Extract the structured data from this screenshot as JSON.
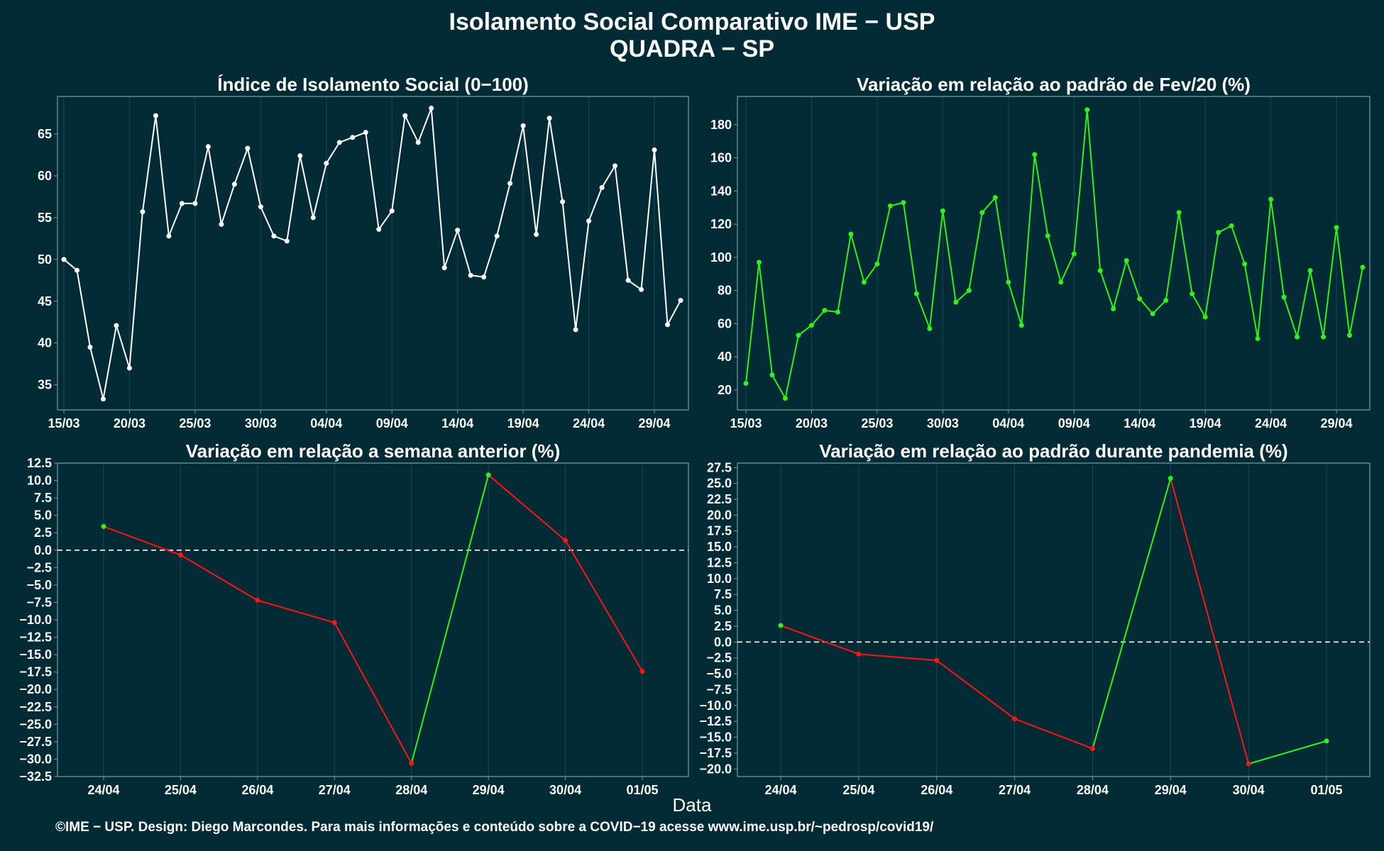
{
  "title": {
    "line1": "Isolamento Social Comparativo IME − USP",
    "line2": "QUADRA − SP"
  },
  "xlabel": "Data",
  "footer": "©IME − USP. Design: Diego Marcondes. Para mais informações e conteúdo sobre a COVID−19 acesse www.ime.usp.br/~pedrosp/covid19/",
  "colors": {
    "background": "#022b35",
    "white_series": "#ffffff",
    "positive": "#2ff21a",
    "negative": "#ff1414",
    "grid": "#1c4651",
    "border": "#7e9aa1"
  },
  "chart_data": [
    {
      "type": "line",
      "title": "Índice de Isolamento Social (0−100)",
      "x_start": "2020-03-15",
      "x": [
        "15/03",
        "16/03",
        "17/03",
        "18/03",
        "19/03",
        "20/03",
        "21/03",
        "22/03",
        "23/03",
        "24/03",
        "25/03",
        "26/03",
        "27/03",
        "28/03",
        "29/03",
        "30/03",
        "31/03",
        "01/04",
        "02/04",
        "03/04",
        "04/04",
        "05/04",
        "06/04",
        "07/04",
        "08/04",
        "09/04",
        "10/04",
        "11/04",
        "12/04",
        "13/04",
        "14/04",
        "15/04",
        "16/04",
        "17/04",
        "18/04",
        "19/04",
        "20/04",
        "21/04",
        "22/04",
        "23/04",
        "24/04",
        "25/04",
        "26/04",
        "27/04",
        "28/04",
        "29/04",
        "30/04",
        "01/05"
      ],
      "values": [
        50.0,
        48.7,
        39.5,
        33.3,
        42.1,
        37.0,
        55.7,
        67.2,
        52.8,
        56.7,
        56.7,
        63.5,
        54.2,
        59.0,
        63.3,
        56.3,
        52.8,
        52.2,
        62.4,
        55.0,
        61.5,
        64.0,
        64.6,
        65.2,
        53.6,
        55.8,
        67.2,
        64.0,
        68.1,
        49.0,
        53.5,
        48.1,
        47.9,
        52.8,
        59.1,
        66.0,
        53.0,
        66.9,
        56.9,
        41.6,
        54.6,
        58.6,
        61.2,
        47.5,
        46.4,
        63.1,
        42.2,
        45.1
      ],
      "xticks": [
        "15/03",
        "20/03",
        "25/03",
        "30/03",
        "04/04",
        "09/04",
        "14/04",
        "19/04",
        "24/04",
        "29/04"
      ],
      "yticks": [
        35,
        40,
        45,
        50,
        55,
        60,
        65
      ],
      "ylim": [
        32,
        69.5
      ],
      "color": "#ffffff"
    },
    {
      "type": "line",
      "title": "Variação em relação ao padrão de Fev/20 (%)",
      "x": [
        "15/03",
        "16/03",
        "17/03",
        "18/03",
        "19/03",
        "20/03",
        "21/03",
        "22/03",
        "23/03",
        "24/03",
        "25/03",
        "26/03",
        "27/03",
        "28/03",
        "29/03",
        "30/03",
        "31/03",
        "01/04",
        "02/04",
        "03/04",
        "04/04",
        "05/04",
        "06/04",
        "07/04",
        "08/04",
        "09/04",
        "10/04",
        "11/04",
        "12/04",
        "13/04",
        "14/04",
        "15/04",
        "16/04",
        "17/04",
        "18/04",
        "19/04",
        "20/04",
        "21/04",
        "22/04",
        "23/04",
        "24/04",
        "25/04",
        "26/04",
        "27/04",
        "28/04",
        "29/04",
        "30/04",
        "01/05"
      ],
      "values": [
        24,
        97,
        29,
        15,
        53,
        59,
        68,
        67,
        114,
        85,
        96,
        131,
        133,
        78,
        57,
        128,
        73,
        80,
        127,
        136,
        85,
        59,
        162,
        113,
        85,
        102,
        189,
        92,
        69,
        98,
        75,
        66,
        74,
        127,
        78,
        64,
        115,
        119,
        96,
        51,
        135,
        76,
        52,
        92,
        52,
        118,
        53,
        94
      ],
      "xticks": [
        "15/03",
        "20/03",
        "25/03",
        "30/03",
        "04/04",
        "09/04",
        "14/04",
        "19/04",
        "24/04",
        "29/04"
      ],
      "yticks": [
        20,
        40,
        60,
        80,
        100,
        120,
        140,
        160,
        180
      ],
      "ylim": [
        8,
        197
      ],
      "color": "#2ff21a"
    },
    {
      "type": "line",
      "title": "Variação em relação a semana anterior (%)",
      "x": [
        "24/04",
        "25/04",
        "26/04",
        "27/04",
        "28/04",
        "29/04",
        "30/04",
        "01/05"
      ],
      "values": [
        3.4,
        -0.7,
        -7.2,
        -10.4,
        -30.6,
        10.8,
        1.4,
        -17.4
      ],
      "xticks": [
        "24/04",
        "25/04",
        "26/04",
        "27/04",
        "28/04",
        "29/04",
        "30/04",
        "01/05"
      ],
      "yticks": [
        12.5,
        10.0,
        7.5,
        5.0,
        2.5,
        0.0,
        -2.5,
        -5.0,
        -7.5,
        -10.0,
        -12.5,
        -15.0,
        -17.5,
        -20.0,
        -22.5,
        -25.0,
        -27.5,
        -30.0,
        -32.5
      ],
      "ytick_labels": [
        "12.5",
        "10.0",
        "7.5",
        "5.0",
        "2.5",
        "0.0",
        "−2.5",
        "−5.0",
        "−7.5",
        "−10.0",
        "−12.5",
        "−15.0",
        "−17.5",
        "−20.0",
        "−22.5",
        "−25.0",
        "−27.5",
        "−30.0",
        "−32.5"
      ],
      "ylim": [
        -32.5,
        12.5
      ],
      "reference_line": 0,
      "color_rule": "segment green when value rises, red when it falls"
    },
    {
      "type": "line",
      "title": "Variação em relação ao padrão durante pandemia (%)",
      "x": [
        "24/04",
        "25/04",
        "26/04",
        "27/04",
        "28/04",
        "29/04",
        "30/04",
        "01/05"
      ],
      "values": [
        2.6,
        -1.9,
        -2.9,
        -12.1,
        -16.8,
        25.8,
        -19.2,
        -15.6
      ],
      "xticks": [
        "24/04",
        "25/04",
        "26/04",
        "27/04",
        "28/04",
        "29/04",
        "30/04",
        "01/05"
      ],
      "yticks": [
        27.5,
        25.0,
        22.5,
        20.0,
        17.5,
        15.0,
        12.5,
        10.0,
        7.5,
        5.0,
        2.5,
        0.0,
        -2.5,
        -5.0,
        -7.5,
        -10.0,
        -12.5,
        -15.0,
        -17.5,
        -20.0
      ],
      "ytick_labels": [
        "27.5",
        "25.0",
        "22.5",
        "20.0",
        "17.5",
        "15.0",
        "12.5",
        "10.0",
        "7.5",
        "5.0",
        "2.5",
        "0.0",
        "−2.5",
        "−5.0",
        "−7.5",
        "−10.0",
        "−12.5",
        "−15.0",
        "−17.5",
        "−20.0"
      ],
      "ylim": [
        -21.2,
        28.2
      ],
      "reference_line": 0,
      "color_rule": "segment green when value rises, red when it falls"
    }
  ]
}
